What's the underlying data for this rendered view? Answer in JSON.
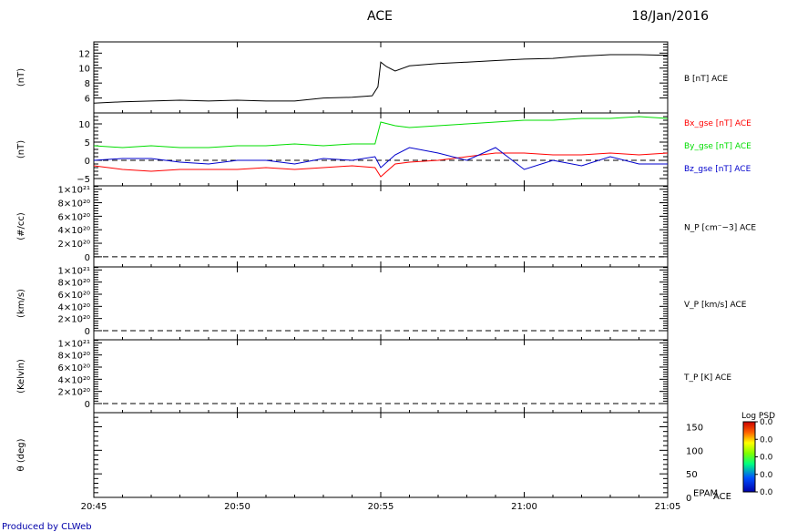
{
  "header": {
    "title": "ACE",
    "date": "18/Jan/2016"
  },
  "footer": {
    "credit": "Produced by CLWeb"
  },
  "time_axis": {
    "ticks": [
      "20:45",
      "20:50",
      "20:55",
      "21:00",
      "21:05"
    ]
  },
  "colorbar": {
    "title": "Log PSD",
    "ticks": [
      "0.0",
      "0.0",
      "0.0",
      "0.0",
      "0.0"
    ]
  },
  "chart_data": [
    {
      "type": "line",
      "ylabel": "(nT)",
      "ylim": [
        4,
        13.5
      ],
      "yticks": [
        6,
        8,
        10,
        12
      ],
      "ytick_labels": [
        "6",
        "8",
        "10",
        "12"
      ],
      "series": [
        {
          "name": "B [nT] ACE",
          "color": "#000000",
          "x": [
            0,
            1,
            2,
            3,
            4,
            5,
            6,
            7,
            8,
            9,
            9.7,
            9.9,
            10,
            10.2,
            10.5,
            11,
            12,
            13,
            14,
            15,
            16,
            17,
            18,
            19,
            20
          ],
          "y": [
            5.3,
            5.5,
            5.6,
            5.7,
            5.6,
            5.7,
            5.6,
            5.6,
            6.0,
            6.1,
            6.3,
            7.5,
            10.8,
            10.2,
            9.6,
            10.3,
            10.6,
            10.8,
            11.0,
            11.2,
            11.3,
            11.6,
            11.8,
            11.8,
            11.7
          ]
        }
      ]
    },
    {
      "type": "line",
      "ylabel": "(nT)",
      "ylim": [
        -7,
        13
      ],
      "yticks": [
        -5,
        0,
        5,
        10
      ],
      "ytick_labels": [
        "−5",
        "0",
        "5",
        "10"
      ],
      "zero_line": true,
      "series": [
        {
          "name": "Bx_gse [nT] ACE",
          "color": "#ff0000",
          "x": [
            0,
            1,
            2,
            3,
            4,
            5,
            6,
            7,
            8,
            9,
            9.8,
            10,
            10.5,
            11,
            12,
            13,
            14,
            15,
            16,
            17,
            18,
            19,
            20
          ],
          "y": [
            -1.5,
            -2.5,
            -3.0,
            -2.5,
            -2.5,
            -2.5,
            -2.0,
            -2.5,
            -2.0,
            -1.5,
            -2.0,
            -4.5,
            -1.0,
            -0.5,
            0.0,
            1.0,
            2.0,
            2.0,
            1.5,
            1.5,
            2.0,
            1.5,
            2.0
          ]
        },
        {
          "name": "By_gse [nT] ACE",
          "color": "#00dd00",
          "x": [
            0,
            1,
            2,
            3,
            4,
            5,
            6,
            7,
            8,
            9,
            9.8,
            10,
            10.5,
            11,
            12,
            13,
            14,
            15,
            16,
            17,
            18,
            19,
            20
          ],
          "y": [
            4.0,
            3.5,
            4.0,
            3.5,
            3.5,
            4.0,
            4.0,
            4.5,
            4.0,
            4.5,
            4.5,
            10.5,
            9.5,
            9.0,
            9.5,
            10.0,
            10.5,
            11.0,
            11.0,
            11.5,
            11.5,
            12.0,
            11.5
          ]
        },
        {
          "name": "Bz_gse [nT] ACE",
          "color": "#0000cc",
          "x": [
            0,
            1,
            2,
            3,
            4,
            5,
            6,
            7,
            8,
            9,
            9.8,
            10,
            10.5,
            11,
            12,
            13,
            14,
            15,
            16,
            17,
            18,
            19,
            20
          ],
          "y": [
            0.0,
            0.5,
            0.5,
            -0.5,
            -1.0,
            0.0,
            0.0,
            -1.0,
            0.5,
            0.0,
            1.0,
            -2.0,
            1.5,
            3.5,
            2.0,
            0.0,
            3.5,
            -2.5,
            0.0,
            -1.5,
            1.0,
            -1.0,
            -1.0
          ]
        }
      ]
    },
    {
      "type": "line",
      "ylabel": "(#/cc)",
      "ylim": [
        -1.5e+20,
        1.05e+21
      ],
      "yticks": [
        0,
        2e+20,
        4e+20,
        6e+20,
        8e+20,
        1e+21
      ],
      "ytick_labels": [
        "0",
        "2×10²⁰",
        "4×10²⁰",
        "6×10²⁰",
        "8×10²⁰",
        "1×10²¹"
      ],
      "series": [
        {
          "name": "N_P [cm^-3] ACE",
          "label": "N_P [cm⁻−3] ACE",
          "color": "#000000",
          "x": [],
          "y": []
        }
      ]
    },
    {
      "type": "line",
      "ylabel": "(km/s)",
      "ylim": [
        -1.5e+20,
        1.05e+21
      ],
      "yticks": [
        0,
        2e+20,
        4e+20,
        6e+20,
        8e+20,
        1e+21
      ],
      "ytick_labels": [
        "0",
        "2×10²⁰",
        "4×10²⁰",
        "6×10²⁰",
        "8×10²⁰",
        "1×10²¹"
      ],
      "series": [
        {
          "name": "V_P [km/s] ACE",
          "color": "#000000",
          "x": [],
          "y": []
        }
      ]
    },
    {
      "type": "line",
      "ylabel": "(Kelvin)",
      "ylim": [
        -1.5e+20,
        1.05e+21
      ],
      "yticks": [
        0,
        2e+20,
        4e+20,
        6e+20,
        8e+20,
        1e+21
      ],
      "ytick_labels": [
        "0",
        "2×10²⁰",
        "4×10²⁰",
        "6×10²⁰",
        "8×10²⁰",
        "1×10²¹"
      ],
      "series": [
        {
          "name": "T_P [K] ACE",
          "color": "#000000",
          "x": [],
          "y": []
        }
      ]
    },
    {
      "type": "heatmap",
      "ylabel": "θ (deg)",
      "ylim": [
        0,
        180
      ],
      "yticks": [
        0,
        50,
        100,
        150
      ],
      "ytick_labels": [
        "0",
        "50",
        "100",
        "150"
      ],
      "right_label": "EPAM",
      "right_suffix": "ACE",
      "values": []
    }
  ]
}
